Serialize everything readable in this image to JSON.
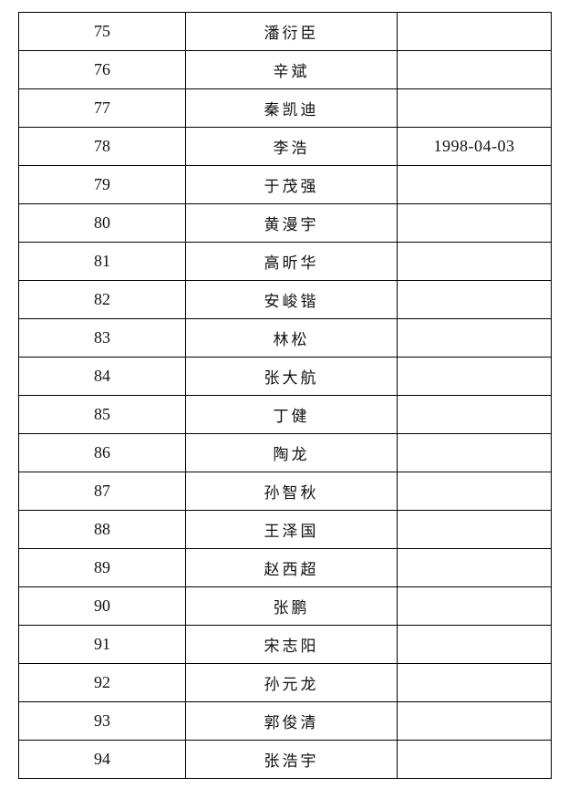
{
  "rows": [
    {
      "no": "75",
      "name": "潘衍臣",
      "date": ""
    },
    {
      "no": "76",
      "name": "辛斌",
      "date": ""
    },
    {
      "no": "77",
      "name": "秦凯迪",
      "date": ""
    },
    {
      "no": "78",
      "name": "李浩",
      "date": "1998-04-03"
    },
    {
      "no": "79",
      "name": "于茂强",
      "date": ""
    },
    {
      "no": "80",
      "name": "黄漫宇",
      "date": ""
    },
    {
      "no": "81",
      "name": "高昕华",
      "date": ""
    },
    {
      "no": "82",
      "name": "安峻锴",
      "date": ""
    },
    {
      "no": "83",
      "name": "林松",
      "date": ""
    },
    {
      "no": "84",
      "name": "张大航",
      "date": ""
    },
    {
      "no": "85",
      "name": "丁健",
      "date": ""
    },
    {
      "no": "86",
      "name": "陶龙",
      "date": ""
    },
    {
      "no": "87",
      "name": "孙智秋",
      "date": ""
    },
    {
      "no": "88",
      "name": "王泽国",
      "date": ""
    },
    {
      "no": "89",
      "name": "赵西超",
      "date": ""
    },
    {
      "no": "90",
      "name": "张鹏",
      "date": ""
    },
    {
      "no": "91",
      "name": "宋志阳",
      "date": ""
    },
    {
      "no": "92",
      "name": "孙元龙",
      "date": ""
    },
    {
      "no": "93",
      "name": "郭俊清",
      "date": ""
    },
    {
      "no": "94",
      "name": "张浩宇",
      "date": ""
    }
  ]
}
